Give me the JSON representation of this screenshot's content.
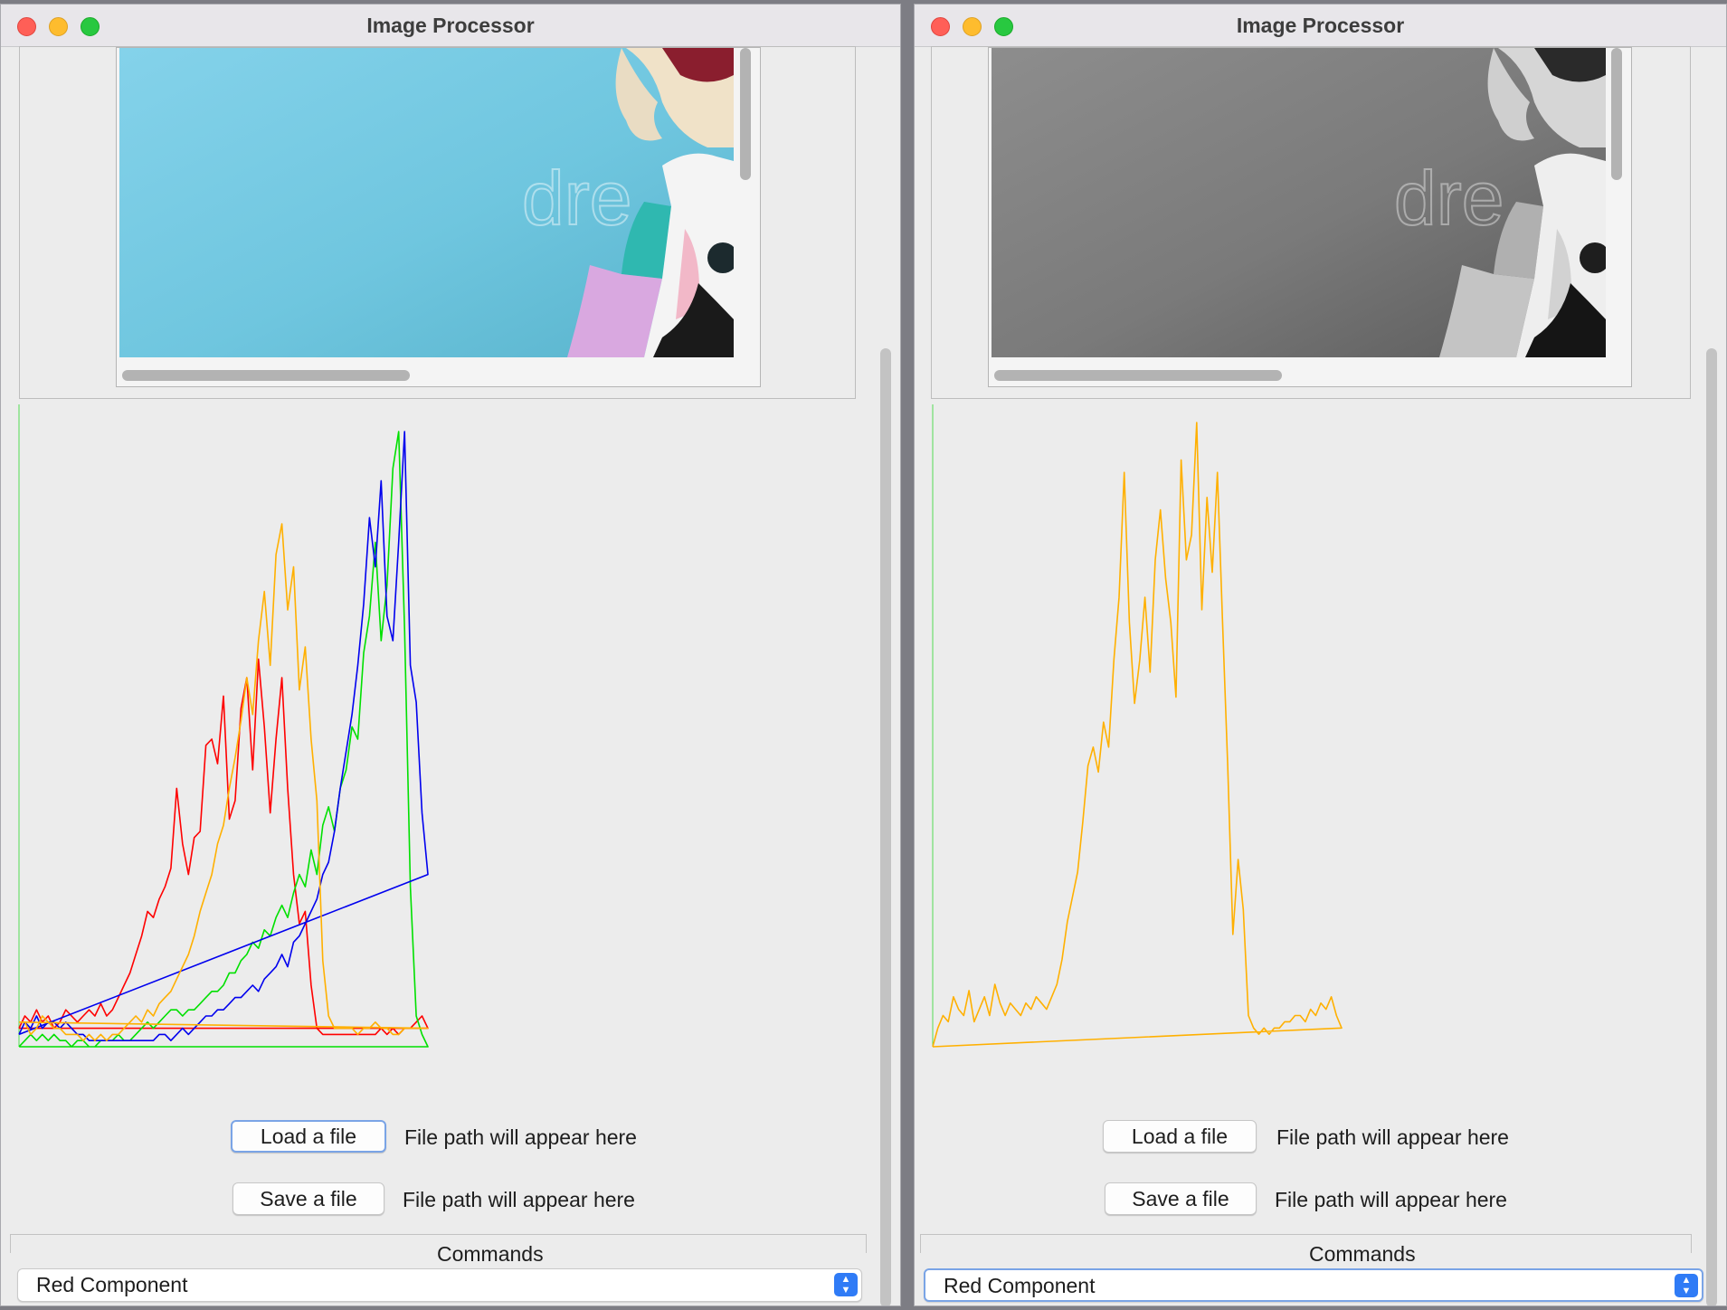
{
  "windows": [
    {
      "title": "Image Processor",
      "image_mode": "color",
      "load_button": "Load a file",
      "load_path": "File path will appear here",
      "save_button": "Save a file",
      "save_path": "File path will appear here",
      "commands_label": "Commands",
      "command_selected": "Red Component",
      "chart_data": {
        "type": "line",
        "title": "",
        "xlabel": "",
        "ylabel": "",
        "grid": false,
        "legend": "none",
        "series": [
          {
            "color": "#ff0000",
            "values": [
              0.03,
              0.05,
              0.04,
              0.06,
              0.04,
              0.05,
              0.03,
              0.04,
              0.06,
              0.05,
              0.04,
              0.05,
              0.06,
              0.05,
              0.07,
              0.05,
              0.06,
              0.08,
              0.1,
              0.12,
              0.15,
              0.18,
              0.22,
              0.21,
              0.24,
              0.26,
              0.29,
              0.42,
              0.33,
              0.28,
              0.34,
              0.35,
              0.49,
              0.5,
              0.46,
              0.57,
              0.37,
              0.4,
              0.55,
              0.6,
              0.45,
              0.63,
              0.52,
              0.38,
              0.5,
              0.6,
              0.42,
              0.28,
              0.2,
              0.22,
              0.1,
              0.03,
              0.02,
              0.02,
              0.02,
              0.02,
              0.02,
              0.02,
              0.02,
              0.02,
              0.02,
              0.02,
              0.03,
              0.02,
              0.03,
              0.02,
              0.03,
              0.03,
              0.04,
              0.05,
              0.03
            ]
          },
          {
            "color": "#00e000",
            "values": [
              0.0,
              0.01,
              0.02,
              0.01,
              0.02,
              0.01,
              0.02,
              0.01,
              0.01,
              0.0,
              0.01,
              0.01,
              0.0,
              0.0,
              0.01,
              0.01,
              0.01,
              0.02,
              0.01,
              0.01,
              0.02,
              0.03,
              0.04,
              0.03,
              0.04,
              0.05,
              0.06,
              0.06,
              0.05,
              0.06,
              0.06,
              0.07,
              0.08,
              0.09,
              0.09,
              0.1,
              0.12,
              0.12,
              0.14,
              0.15,
              0.17,
              0.16,
              0.19,
              0.18,
              0.21,
              0.23,
              0.21,
              0.25,
              0.28,
              0.26,
              0.32,
              0.28,
              0.36,
              0.39,
              0.35,
              0.42,
              0.45,
              0.52,
              0.5,
              0.64,
              0.7,
              0.82,
              0.66,
              0.75,
              0.94,
              1.0,
              0.68,
              0.26,
              0.05,
              0.02,
              0.0
            ]
          },
          {
            "color": "#0000ee",
            "values": [
              0.02,
              0.04,
              0.03,
              0.05,
              0.03,
              0.04,
              0.04,
              0.03,
              0.04,
              0.03,
              0.02,
              0.02,
              0.01,
              0.01,
              0.01,
              0.01,
              0.01,
              0.01,
              0.01,
              0.01,
              0.01,
              0.01,
              0.01,
              0.01,
              0.02,
              0.02,
              0.01,
              0.02,
              0.03,
              0.02,
              0.03,
              0.04,
              0.05,
              0.05,
              0.06,
              0.06,
              0.07,
              0.08,
              0.08,
              0.09,
              0.1,
              0.09,
              0.11,
              0.12,
              0.13,
              0.15,
              0.13,
              0.17,
              0.18,
              0.2,
              0.22,
              0.24,
              0.28,
              0.3,
              0.35,
              0.42,
              0.48,
              0.54,
              0.62,
              0.72,
              0.86,
              0.78,
              0.92,
              0.7,
              0.66,
              0.82,
              1.0,
              0.62,
              0.56,
              0.38,
              0.28
            ]
          },
          {
            "color": "#ffb000",
            "values": [
              0.04,
              0.04,
              0.02,
              0.03,
              0.05,
              0.04,
              0.03,
              0.03,
              0.02,
              0.02,
              0.02,
              0.01,
              0.02,
              0.01,
              0.02,
              0.01,
              0.02,
              0.02,
              0.03,
              0.04,
              0.05,
              0.04,
              0.06,
              0.05,
              0.07,
              0.08,
              0.09,
              0.11,
              0.13,
              0.15,
              0.18,
              0.22,
              0.25,
              0.28,
              0.33,
              0.36,
              0.42,
              0.47,
              0.53,
              0.6,
              0.54,
              0.66,
              0.74,
              0.62,
              0.8,
              0.85,
              0.71,
              0.78,
              0.58,
              0.65,
              0.5,
              0.4,
              0.14,
              0.05,
              0.03,
              0.03,
              0.03,
              0.03,
              0.02,
              0.03,
              0.03,
              0.04,
              0.03,
              0.03,
              0.02,
              0.02,
              0.03,
              0.03,
              0.03,
              0.03,
              0.03
            ]
          }
        ]
      }
    },
    {
      "title": "Image Processor",
      "image_mode": "grayscale",
      "load_button": "Load a file",
      "load_path": "File path will appear here",
      "save_button": "Save a file",
      "save_path": "File path will appear here",
      "commands_label": "Commands",
      "command_selected": "Red Component",
      "chart_data": {
        "type": "line",
        "title": "",
        "xlabel": "",
        "ylabel": "",
        "grid": false,
        "legend": "none",
        "series": [
          {
            "color": "#ffb000",
            "values": [
              0.0,
              0.03,
              0.05,
              0.04,
              0.08,
              0.06,
              0.05,
              0.09,
              0.04,
              0.06,
              0.08,
              0.05,
              0.1,
              0.07,
              0.05,
              0.07,
              0.06,
              0.05,
              0.07,
              0.06,
              0.08,
              0.07,
              0.06,
              0.08,
              0.1,
              0.14,
              0.2,
              0.24,
              0.28,
              0.36,
              0.45,
              0.48,
              0.44,
              0.52,
              0.48,
              0.62,
              0.72,
              0.92,
              0.68,
              0.55,
              0.62,
              0.72,
              0.6,
              0.78,
              0.86,
              0.75,
              0.68,
              0.56,
              0.94,
              0.78,
              0.82,
              1.0,
              0.7,
              0.88,
              0.76,
              0.92,
              0.68,
              0.45,
              0.18,
              0.3,
              0.22,
              0.05,
              0.03,
              0.02,
              0.03,
              0.02,
              0.03,
              0.03,
              0.04,
              0.04,
              0.05,
              0.05,
              0.04,
              0.06,
              0.05,
              0.07,
              0.06,
              0.08,
              0.05,
              0.03
            ]
          }
        ]
      }
    }
  ]
}
